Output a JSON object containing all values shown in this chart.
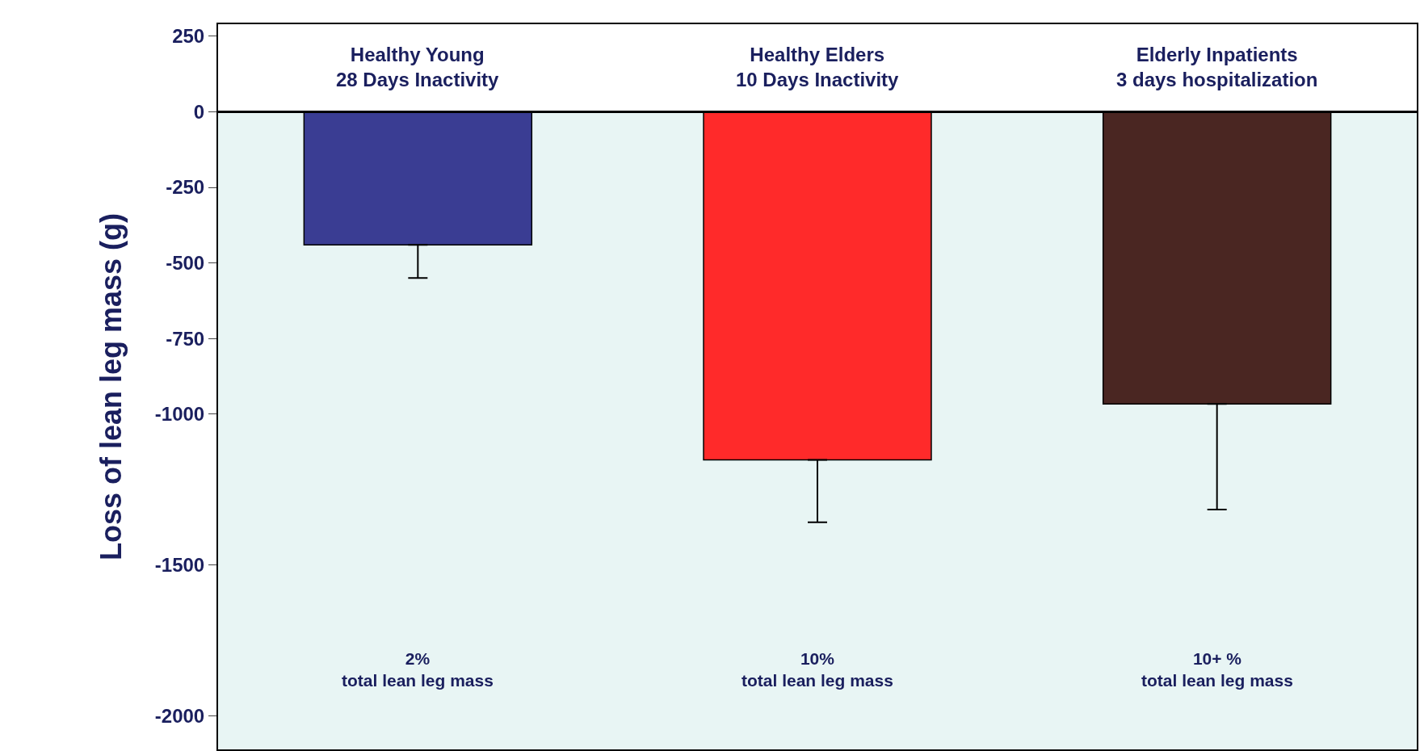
{
  "chart_data": {
    "type": "bar",
    "ylabel": "Loss of lean leg mass (g)",
    "categories": [
      "Healthy Young\n28 Days Inactivity",
      "Healthy Elders\n10 Days Inactivity",
      "Elderly Inpatients\n3 days hospitalization"
    ],
    "values": [
      -440,
      -1152,
      -967
    ],
    "colors": [
      "#3a3d93",
      "#ff2a2a",
      "#4a2622"
    ],
    "errors": [
      [
        -550,
        -440
      ],
      [
        -1358,
        -1152
      ],
      [
        -1316,
        -967
      ]
    ],
    "ylim": [
      -2110,
      290
    ],
    "yticks": [
      250,
      0,
      -250,
      -500,
      -750,
      -1000,
      -1500,
      -2000
    ],
    "ref_lines": [
      {
        "axis": "y",
        "value": 0,
        "color": "#000000"
      }
    ],
    "bands": [
      {
        "axis": "y",
        "from": 0,
        "to": -2110,
        "color": "#e8f5f4"
      }
    ],
    "annotations": [
      "2%\ntotal lean leg mass",
      "10%\ntotal lean leg mass",
      "10+ %\ntotal lean leg mass"
    ],
    "grid": false,
    "legend": false
  }
}
